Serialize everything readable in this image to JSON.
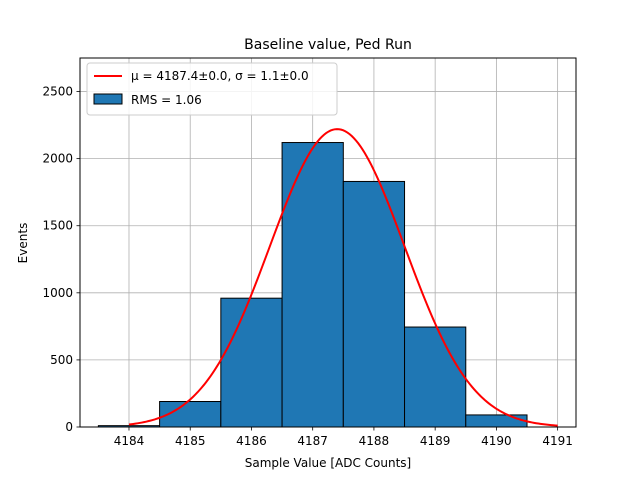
{
  "chart_data": {
    "type": "bar",
    "title": "Baseline value, Ped Run",
    "xlabel": "Sample Value [ADC Counts]",
    "ylabel": "Events",
    "xlim": [
      4183.2,
      4191.3
    ],
    "ylim": [
      0,
      2750
    ],
    "grid": true,
    "legend_position": "top-left",
    "x_ticks": [
      4184,
      4185,
      4186,
      4187,
      4188,
      4189,
      4190,
      4191
    ],
    "y_ticks": [
      0,
      500,
      1000,
      1500,
      2000,
      2500
    ],
    "bins": [
      {
        "left": 4183.5,
        "right": 4184.5,
        "value": 10
      },
      {
        "left": 4184.5,
        "right": 4185.5,
        "value": 190
      },
      {
        "left": 4185.5,
        "right": 4186.5,
        "value": 960
      },
      {
        "left": 4186.5,
        "right": 4187.5,
        "value": 2120
      },
      {
        "left": 4187.5,
        "right": 4188.5,
        "value": 1830
      },
      {
        "left": 4188.5,
        "right": 4189.5,
        "value": 745
      },
      {
        "left": 4189.5,
        "right": 4190.5,
        "value": 90
      }
    ],
    "fit": {
      "type": "gaussian",
      "amplitude": 2220,
      "mu": 4187.4,
      "sigma": 1.1,
      "x_range": [
        4184,
        4191
      ]
    },
    "series": [
      {
        "name": "μ = 4187.4±0.0, σ = 1.1±0.0",
        "type": "line",
        "color": "#ff0000"
      },
      {
        "name": "RMS = 1.06",
        "type": "bar",
        "color": "#1f77b4"
      }
    ]
  }
}
